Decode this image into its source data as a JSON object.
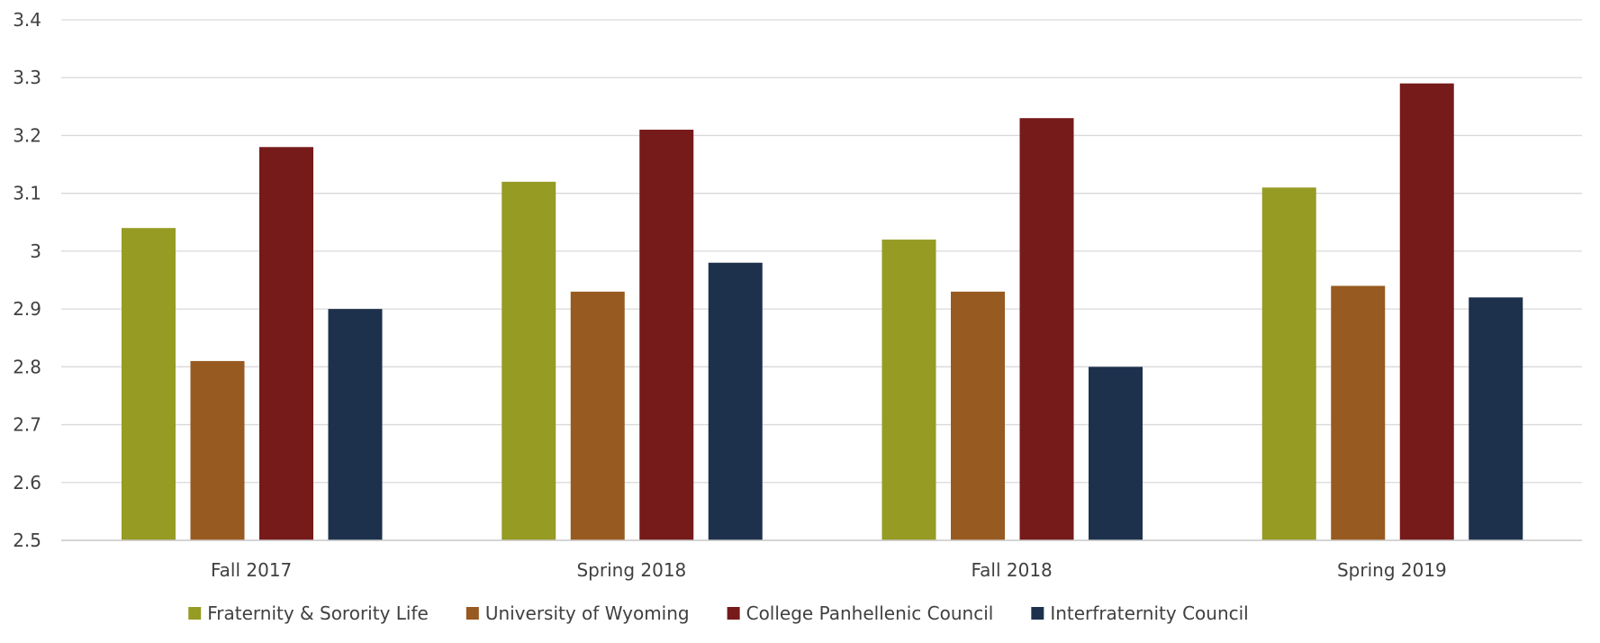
{
  "chart_data": {
    "type": "bar",
    "categories": [
      "Fall 2017",
      "Spring 2018",
      "Fall 2018",
      "Spring 2019"
    ],
    "series": [
      {
        "name": "Fraternity & Sorority Life",
        "color": "#969B24",
        "values": [
          3.04,
          3.12,
          3.02,
          3.11
        ]
      },
      {
        "name": "University of Wyoming",
        "color": "#975A20",
        "values": [
          2.81,
          2.93,
          2.93,
          2.94
        ]
      },
      {
        "name": "College Panhellenic Council",
        "color": "#761A1A",
        "values": [
          3.18,
          3.21,
          3.23,
          3.29
        ]
      },
      {
        "name": "Interfraternity Council",
        "color": "#1D314D",
        "values": [
          2.9,
          2.98,
          2.8,
          2.92
        ]
      }
    ],
    "ylim": [
      2.5,
      3.4
    ],
    "yticks": [
      "2.5",
      "2.6",
      "2.7",
      "2.8",
      "2.9",
      "3",
      "3.1",
      "3.2",
      "3.3",
      "3.4"
    ],
    "grid": true,
    "legend_position": "bottom",
    "title": "",
    "xlabel": "",
    "ylabel": ""
  }
}
